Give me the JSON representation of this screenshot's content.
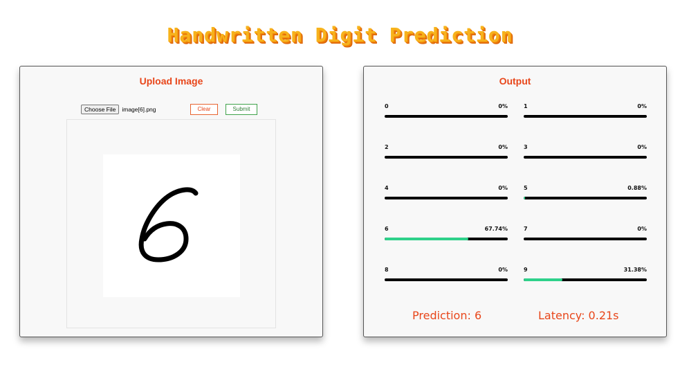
{
  "app": {
    "title": "Handwritten Digit Prediction"
  },
  "upload": {
    "heading": "Upload Image",
    "choose_file_label": "Choose File",
    "file_name": "image[6].png",
    "clear_label": "Clear",
    "submit_label": "Submit"
  },
  "output": {
    "heading": "Output",
    "probabilities": [
      {
        "label": "0",
        "percent_text": "0%",
        "value": 0
      },
      {
        "label": "1",
        "percent_text": "0%",
        "value": 0
      },
      {
        "label": "2",
        "percent_text": "0%",
        "value": 0
      },
      {
        "label": "3",
        "percent_text": "0%",
        "value": 0
      },
      {
        "label": "4",
        "percent_text": "0%",
        "value": 0
      },
      {
        "label": "5",
        "percent_text": "0.88%",
        "value": 0.88
      },
      {
        "label": "6",
        "percent_text": "67.74%",
        "value": 67.74
      },
      {
        "label": "7",
        "percent_text": "0%",
        "value": 0
      },
      {
        "label": "8",
        "percent_text": "0%",
        "value": 0
      },
      {
        "label": "9",
        "percent_text": "31.38%",
        "value": 31.38
      }
    ],
    "prediction_text": "Prediction: 6",
    "latency_text": "Latency: 0.21s"
  },
  "colors": {
    "accent": "#e8461a",
    "bar_fill": "#2ed18a",
    "bar_track": "#000000",
    "submit": "#3fa24a"
  }
}
